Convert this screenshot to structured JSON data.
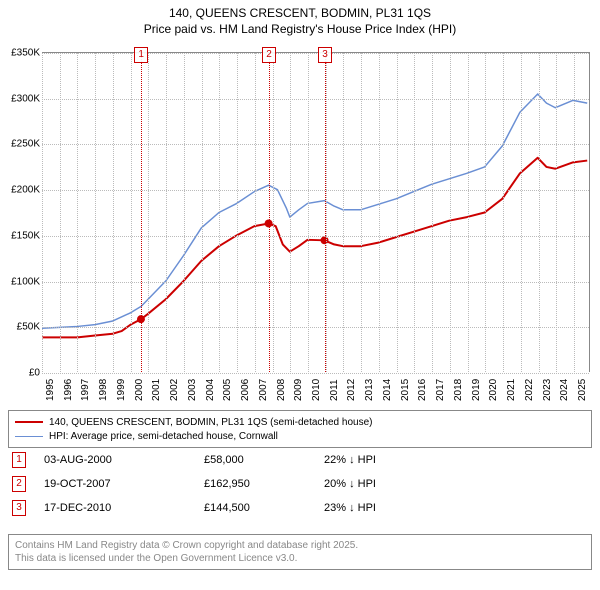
{
  "title": {
    "line1": "140, QUEENS CRESCENT, BODMIN, PL31 1QS",
    "line2": "Price paid vs. HM Land Registry's House Price Index (HPI)",
    "fontsize": 12
  },
  "chart": {
    "background_color": "#ffffff",
    "grid_color": "#bbbbbb",
    "axis_color": "#888888",
    "xlim": [
      1995,
      2025.9
    ],
    "ylim": [
      0,
      350000
    ],
    "y_ticks": [
      0,
      50000,
      100000,
      150000,
      200000,
      250000,
      300000,
      350000
    ],
    "y_tick_labels": [
      "£0",
      "£50K",
      "£100K",
      "£150K",
      "£200K",
      "£250K",
      "£300K",
      "£350K"
    ],
    "x_ticks": [
      1995,
      1996,
      1997,
      1998,
      1999,
      2000,
      2001,
      2002,
      2003,
      2004,
      2005,
      2006,
      2007,
      2008,
      2009,
      2010,
      2011,
      2012,
      2013,
      2014,
      2015,
      2016,
      2017,
      2018,
      2019,
      2020,
      2021,
      2022,
      2023,
      2024,
      2025
    ],
    "tick_fontsize": 10,
    "series": [
      {
        "name": "price_paid",
        "legend_label": "140, QUEENS CRESCENT, BODMIN, PL31 1QS (semi-detached house)",
        "color": "#cc0000",
        "line_width": 2,
        "points": [
          [
            1995.0,
            38000
          ],
          [
            1996.0,
            38000
          ],
          [
            1997.0,
            38000
          ],
          [
            1998.0,
            40000
          ],
          [
            1999.0,
            42000
          ],
          [
            1999.5,
            45000
          ],
          [
            2000.0,
            52000
          ],
          [
            2000.6,
            58000
          ],
          [
            2001.0,
            64000
          ],
          [
            2002.0,
            80000
          ],
          [
            2003.0,
            100000
          ],
          [
            2004.0,
            122000
          ],
          [
            2005.0,
            138000
          ],
          [
            2006.0,
            150000
          ],
          [
            2007.0,
            160000
          ],
          [
            2007.8,
            162950
          ],
          [
            2008.2,
            160000
          ],
          [
            2008.6,
            140000
          ],
          [
            2009.0,
            132000
          ],
          [
            2009.5,
            138000
          ],
          [
            2010.0,
            145000
          ],
          [
            2010.95,
            144500
          ],
          [
            2011.5,
            140000
          ],
          [
            2012.0,
            138000
          ],
          [
            2013.0,
            138000
          ],
          [
            2014.0,
            142000
          ],
          [
            2015.0,
            148000
          ],
          [
            2016.0,
            154000
          ],
          [
            2017.0,
            160000
          ],
          [
            2018.0,
            166000
          ],
          [
            2019.0,
            170000
          ],
          [
            2020.0,
            175000
          ],
          [
            2021.0,
            190000
          ],
          [
            2022.0,
            218000
          ],
          [
            2023.0,
            235000
          ],
          [
            2023.5,
            225000
          ],
          [
            2024.0,
            223000
          ],
          [
            2025.0,
            230000
          ],
          [
            2025.8,
            232000
          ]
        ],
        "sale_markers": [
          {
            "x": 2000.59,
            "y": 58000
          },
          {
            "x": 2007.8,
            "y": 162950
          },
          {
            "x": 2010.96,
            "y": 144500
          }
        ]
      },
      {
        "name": "hpi",
        "legend_label": "HPI: Average price, semi-detached house, Cornwall",
        "color": "#6a8fd4",
        "line_width": 1.5,
        "points": [
          [
            1995.0,
            48000
          ],
          [
            1996.0,
            49000
          ],
          [
            1997.0,
            50000
          ],
          [
            1998.0,
            52000
          ],
          [
            1999.0,
            56000
          ],
          [
            2000.0,
            65000
          ],
          [
            2000.6,
            72000
          ],
          [
            2001.0,
            80000
          ],
          [
            2002.0,
            100000
          ],
          [
            2003.0,
            128000
          ],
          [
            2004.0,
            158000
          ],
          [
            2005.0,
            175000
          ],
          [
            2006.0,
            185000
          ],
          [
            2007.0,
            198000
          ],
          [
            2007.8,
            205000
          ],
          [
            2008.3,
            200000
          ],
          [
            2008.8,
            180000
          ],
          [
            2009.0,
            170000
          ],
          [
            2009.5,
            178000
          ],
          [
            2010.0,
            185000
          ],
          [
            2010.96,
            188000
          ],
          [
            2011.5,
            182000
          ],
          [
            2012.0,
            178000
          ],
          [
            2013.0,
            178000
          ],
          [
            2014.0,
            184000
          ],
          [
            2015.0,
            190000
          ],
          [
            2016.0,
            198000
          ],
          [
            2017.0,
            206000
          ],
          [
            2018.0,
            212000
          ],
          [
            2019.0,
            218000
          ],
          [
            2020.0,
            225000
          ],
          [
            2021.0,
            248000
          ],
          [
            2022.0,
            285000
          ],
          [
            2023.0,
            305000
          ],
          [
            2023.5,
            295000
          ],
          [
            2024.0,
            290000
          ],
          [
            2025.0,
            298000
          ],
          [
            2025.8,
            295000
          ]
        ]
      }
    ],
    "event_lines": [
      {
        "label": "1",
        "x": 2000.59,
        "color": "#cc0000"
      },
      {
        "label": "2",
        "x": 2007.8,
        "color": "#cc0000"
      },
      {
        "label": "3",
        "x": 2010.96,
        "color": "#cc0000"
      }
    ]
  },
  "sales": [
    {
      "num": "1",
      "date": "03-AUG-2000",
      "price": "£58,000",
      "hpi": "22% ↓ HPI",
      "color": "#cc0000"
    },
    {
      "num": "2",
      "date": "19-OCT-2007",
      "price": "£162,950",
      "hpi": "20% ↓ HPI",
      "color": "#cc0000"
    },
    {
      "num": "3",
      "date": "17-DEC-2010",
      "price": "£144,500",
      "hpi": "23% ↓ HPI",
      "color": "#cc0000"
    }
  ],
  "attribution": {
    "line1": "Contains HM Land Registry data © Crown copyright and database right 2025.",
    "line2": "This data is licensed under the Open Government Licence v3.0."
  }
}
